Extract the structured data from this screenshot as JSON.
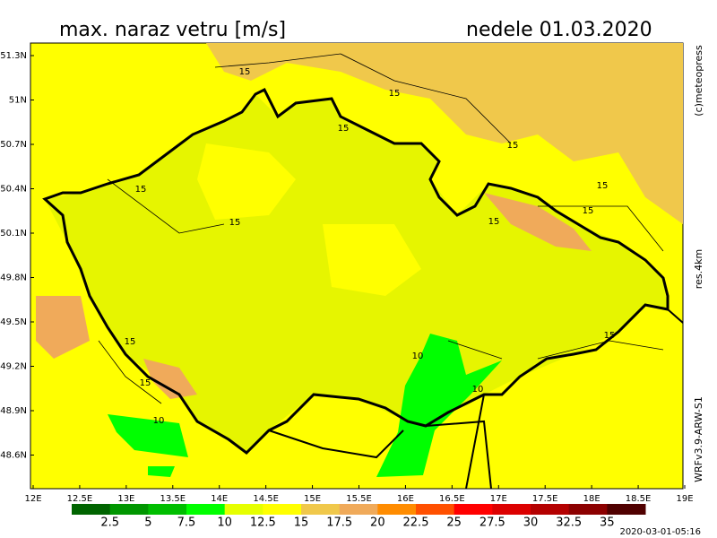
{
  "header": {
    "title": "max. naraz vetru [m/s]",
    "date": "nedele 01.03.2020"
  },
  "side_notes": [
    "(c)meteopress",
    "res.4km",
    "WRFv3.9-ARW-S1"
  ],
  "map": {
    "lat_labels": [
      "51.3N",
      "51N",
      "50.7N",
      "50.4N",
      "50.1N",
      "49.8N",
      "49.5N",
      "49.2N",
      "48.9N",
      "48.6N"
    ],
    "lon_labels": [
      "12E",
      "12.5E",
      "13E",
      "13.5E",
      "14E",
      "14.5E",
      "15E",
      "15.5E",
      "16E",
      "16.5E",
      "17E",
      "17.5E",
      "18E",
      "18.5E",
      "19E"
    ],
    "contour_labels": [
      "15",
      "15",
      "15",
      "15",
      "15",
      "15",
      "15",
      "15",
      "15",
      "15",
      "15",
      "15",
      "10",
      "10",
      "10"
    ]
  },
  "legend": {
    "values": [
      2.5,
      5,
      7.5,
      10,
      12.5,
      15,
      17.5,
      20,
      22.5,
      25,
      27.5,
      30,
      32.5,
      35
    ],
    "colors": [
      "#006400",
      "#009600",
      "#00be00",
      "#00ff00",
      "#e6ff00",
      "#ffff00",
      "#f0c84b",
      "#f0aa5a",
      "#ff8c00",
      "#ff5000",
      "#ff0000",
      "#dc0000",
      "#b40000",
      "#8c0000",
      "#500000"
    ]
  },
  "timestamp": "2020-03-01-05:16"
}
